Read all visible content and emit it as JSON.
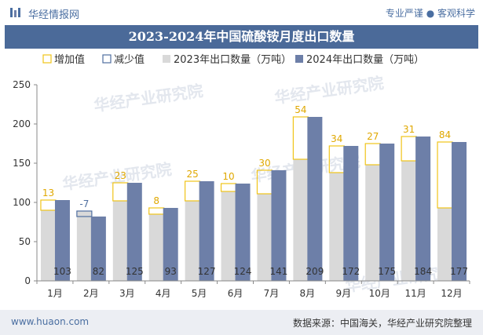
{
  "header": {
    "site_name": "华经情报网",
    "tagline": "专业严谨 ● 客观科学"
  },
  "title": "2023-2024年中国硫酸铵月度出口数量",
  "footer": {
    "url": "www.huaon.com",
    "source": "数据来源：中国海关，华经产业研究院整理"
  },
  "watermark": "华经产业研究院",
  "colors": {
    "brand": "#4a6ea1",
    "title_bg": "#4b6a99",
    "series_2023": "#d9d9d9",
    "series_2024": "#6d7fa8",
    "increase": "#f0c419",
    "decrease": "#4f6fa0",
    "footer_bg": "#eceef3"
  },
  "chart_data": {
    "type": "bar",
    "categories": [
      "1月",
      "2月",
      "3月",
      "4月",
      "5月",
      "6月",
      "7月",
      "8月",
      "9月",
      "10月",
      "11月",
      "12月"
    ],
    "series": [
      {
        "name": "2023年出口数量（万吨）",
        "values": [
          90,
          89,
          102,
          85,
          102,
          114,
          111,
          155,
          138,
          148,
          153,
          93
        ]
      },
      {
        "name": "2024年出口数量（万吨）",
        "values": [
          103,
          82,
          125,
          93,
          127,
          124,
          141,
          209,
          172,
          175,
          184,
          177
        ]
      }
    ],
    "changes": [
      13,
      -7,
      23,
      8,
      25,
      10,
      30,
      54,
      34,
      27,
      31,
      84
    ],
    "legend": [
      "增加值",
      "减少值",
      "2023年出口数量（万吨）",
      "2024年出口数量（万吨）"
    ],
    "ylim": [
      0,
      250
    ],
    "yticks": [
      0,
      50,
      100,
      150,
      200,
      250
    ],
    "grid": false,
    "legend_position": "top"
  }
}
